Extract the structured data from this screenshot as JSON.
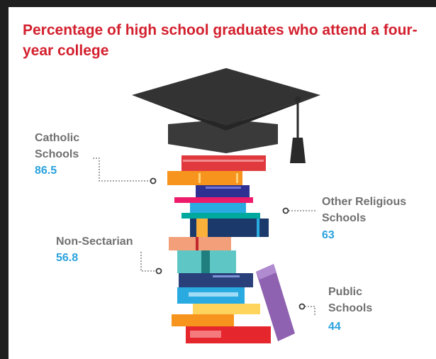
{
  "colors": {
    "title": "#d3202e",
    "label": "#707070",
    "value": "#2aa2dd",
    "cap": "#3a3a3a"
  },
  "icons": {
    "cap": "graduation-cap-icon",
    "books": "book-stack-icon"
  },
  "chart_data": {
    "type": "infographic",
    "title": "Percentage of high school graduates who attend a four-year college",
    "unit": "",
    "categories": [
      "Catholic Schools",
      "Other Religious Schools",
      "Non-Sectarian",
      "Public Schools"
    ],
    "values": [
      86.5,
      63,
      56.8,
      44
    ],
    "labels": [
      {
        "lines": [
          "Catholic",
          "Schools"
        ],
        "value": "86.5"
      },
      {
        "lines": [
          "Other Religious",
          "Schools"
        ],
        "value": "63"
      },
      {
        "lines": [
          "Non-Sectarian"
        ],
        "value": "56.8"
      },
      {
        "lines": [
          "Public",
          "Schools"
        ],
        "value": "44"
      }
    ]
  }
}
